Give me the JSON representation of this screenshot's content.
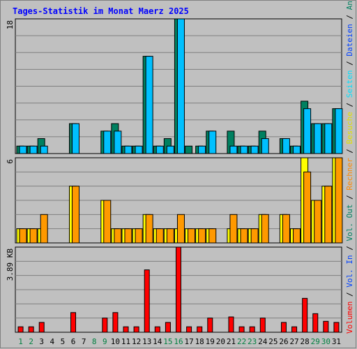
{
  "title": "Tages-Statistik im Monat Maerz 2025",
  "colors": {
    "background": "#c0c0c0",
    "frame": "#7f7f7f",
    "grid": "#7f7f7f",
    "title": "#0000ff",
    "day_label": "#000000",
    "weekend_label": "#008040",
    "anfragen": "#008060",
    "dateien": "#00c0ff",
    "seiten": "#00e0ff",
    "besuche": "#ffff00",
    "rechner": "#ff9900",
    "vol_out": "#008060",
    "vol_in": "#0040ff",
    "volumen": "#ff0000"
  },
  "right_legend_top": [
    {
      "text": "Anfragen",
      "color": "#008060"
    },
    {
      "text": " / ",
      "color": "#000000"
    },
    {
      "text": "Dateien",
      "color": "#0040ff"
    },
    {
      "text": " / ",
      "color": "#000000"
    },
    {
      "text": "Seiten",
      "color": "#00e0ff"
    },
    {
      "text": " / ",
      "color": "#000000"
    },
    {
      "text": "Besuche",
      "color": "#e0e000"
    },
    {
      "text": " / ",
      "color": "#000000"
    },
    {
      "text": "Rechner",
      "color": "#ff8800"
    },
    {
      "text": " / ",
      "color": "#000000"
    },
    {
      "text": "Vol. Out",
      "color": "#008060"
    },
    {
      "text": " / ",
      "color": "#000000"
    },
    {
      "text": "Vol. In",
      "color": "#0040ff"
    },
    {
      "text": " / ",
      "color": "#000000"
    },
    {
      "text": "Volumen",
      "color": "#ff0000"
    }
  ],
  "chart_data": [
    {
      "type": "bar",
      "panel": "hits",
      "y_max_label": "18",
      "ylim": [
        0,
        18
      ],
      "categories": [
        "1",
        "2",
        "3",
        "4",
        "5",
        "6",
        "7",
        "8",
        "9",
        "10",
        "11",
        "12",
        "13",
        "14",
        "15",
        "16",
        "17",
        "18",
        "19",
        "20",
        "21",
        "22",
        "23",
        "24",
        "25",
        "26",
        "27",
        "28",
        "29",
        "30",
        "31"
      ],
      "series": [
        {
          "name": "Anfragen",
          "values": [
            1,
            1,
            2,
            0,
            0,
            4,
            0,
            0,
            3,
            4,
            1,
            1,
            13,
            1,
            2,
            18,
            1,
            1,
            3,
            0,
            3,
            1,
            1,
            3,
            0,
            2,
            1,
            7,
            4,
            4,
            6
          ]
        },
        {
          "name": "Dateien",
          "values": [
            1,
            1,
            1,
            0,
            0,
            4,
            0,
            0,
            3,
            3,
            1,
            1,
            13,
            1,
            1,
            18,
            0,
            1,
            3,
            0,
            1,
            1,
            1,
            2,
            0,
            2,
            1,
            6,
            4,
            4,
            6
          ]
        }
      ]
    },
    {
      "type": "bar",
      "panel": "visits",
      "y_max_label": "6",
      "ylim": [
        0,
        6
      ],
      "categories": [
        "1",
        "2",
        "3",
        "4",
        "5",
        "6",
        "7",
        "8",
        "9",
        "10",
        "11",
        "12",
        "13",
        "14",
        "15",
        "16",
        "17",
        "18",
        "19",
        "20",
        "21",
        "22",
        "23",
        "24",
        "25",
        "26",
        "27",
        "28",
        "29",
        "30",
        "31"
      ],
      "series": [
        {
          "name": "Besuche",
          "values": [
            1,
            1,
            1,
            0,
            0,
            4,
            0,
            0,
            3,
            1,
            1,
            1,
            2,
            1,
            1,
            1,
            1,
            1,
            1,
            0,
            1,
            1,
            1,
            2,
            0,
            2,
            1,
            6,
            3,
            4,
            6
          ]
        },
        {
          "name": "Rechner",
          "values": [
            1,
            1,
            2,
            0,
            0,
            4,
            0,
            0,
            3,
            1,
            1,
            1,
            2,
            1,
            1,
            2,
            1,
            1,
            1,
            0,
            2,
            1,
            1,
            2,
            0,
            2,
            1,
            5,
            3,
            4,
            6
          ]
        }
      ]
    },
    {
      "type": "bar",
      "panel": "volume",
      "y_max_label": "3.89 KB",
      "ylim": [
        0,
        3.89
      ],
      "categories": [
        "1",
        "2",
        "3",
        "4",
        "5",
        "6",
        "7",
        "8",
        "9",
        "10",
        "11",
        "12",
        "13",
        "14",
        "15",
        "16",
        "17",
        "18",
        "19",
        "20",
        "21",
        "22",
        "23",
        "24",
        "25",
        "26",
        "27",
        "28",
        "29",
        "30",
        "31"
      ],
      "series": [
        {
          "name": "Volumen",
          "values": [
            0.25,
            0.25,
            0.45,
            0,
            0,
            0.9,
            0,
            0,
            0.65,
            0.9,
            0.25,
            0.25,
            2.85,
            0.25,
            0.45,
            3.89,
            0.25,
            0.25,
            0.65,
            0,
            0.7,
            0.25,
            0.25,
            0.65,
            0,
            0.45,
            0.25,
            1.55,
            0.85,
            0.5,
            0.45
          ]
        }
      ]
    }
  ],
  "weekend_days": [
    1,
    2,
    8,
    9,
    15,
    16,
    22,
    23,
    29,
    30
  ]
}
